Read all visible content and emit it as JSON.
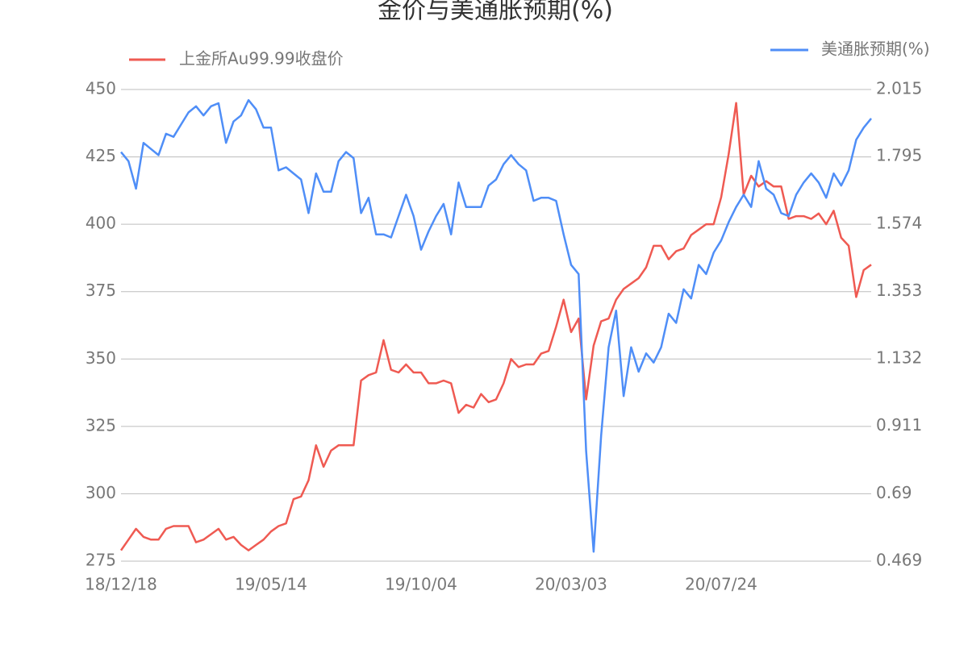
{
  "chart_data": {
    "type": "line",
    "title": "金价与美通胀预期(%)",
    "categories": [
      "18/12/18",
      null,
      null,
      null,
      null,
      null,
      null,
      null,
      null,
      null,
      null,
      null,
      null,
      null,
      null,
      null,
      null,
      null,
      null,
      null,
      "19/05/14",
      null,
      null,
      null,
      null,
      null,
      null,
      null,
      null,
      null,
      null,
      null,
      null,
      null,
      null,
      null,
      null,
      null,
      null,
      null,
      "19/10/04",
      null,
      null,
      null,
      null,
      null,
      null,
      null,
      null,
      null,
      null,
      null,
      null,
      null,
      null,
      null,
      null,
      null,
      null,
      null,
      "20/03/03",
      null,
      null,
      null,
      null,
      null,
      null,
      null,
      null,
      null,
      null,
      null,
      null,
      null,
      null,
      null,
      null,
      null,
      null,
      null,
      "20/07/24",
      null,
      null,
      null,
      null,
      null,
      null,
      null,
      null,
      null,
      null,
      null,
      null,
      null,
      null,
      null,
      null,
      null,
      null,
      null,
      null
    ],
    "series": [
      {
        "name": "上金所Au99.99收盘价",
        "color": "#ef5a52",
        "axis": "y",
        "values": [
          279,
          283,
          287,
          284,
          283,
          283,
          287,
          288,
          288,
          288,
          282,
          283,
          285,
          287,
          283,
          284,
          281,
          279,
          281,
          283,
          286,
          288,
          289,
          298,
          299,
          305,
          318,
          310,
          316,
          318,
          318,
          318,
          342,
          344,
          345,
          357,
          346,
          345,
          348,
          345,
          345,
          341,
          341,
          342,
          341,
          330,
          333,
          332,
          337,
          334,
          335,
          341,
          350,
          347,
          348,
          348,
          352,
          353,
          362,
          372,
          360,
          365,
          335,
          355,
          364,
          365,
          372,
          376,
          378,
          380,
          384,
          392,
          392,
          387,
          390,
          391,
          396,
          398,
          400,
          400,
          410,
          426,
          445,
          411,
          418,
          414,
          416,
          414,
          414,
          402,
          403,
          403,
          402,
          404,
          400,
          405,
          395,
          392,
          373,
          383,
          385
        ]
      },
      {
        "name": "美通胀预期(%)",
        "color": "#4f8ef7",
        "axis": "y2",
        "values": [
          1.81,
          1.78,
          1.69,
          1.84,
          1.82,
          1.8,
          1.87,
          1.86,
          1.9,
          1.94,
          1.96,
          1.93,
          1.96,
          1.97,
          1.84,
          1.91,
          1.93,
          1.98,
          1.95,
          1.89,
          1.89,
          1.75,
          1.76,
          1.74,
          1.72,
          1.61,
          1.74,
          1.68,
          1.68,
          1.78,
          1.81,
          1.79,
          1.61,
          1.66,
          1.54,
          1.54,
          1.53,
          1.6,
          1.67,
          1.6,
          1.49,
          1.55,
          1.6,
          1.64,
          1.54,
          1.71,
          1.63,
          1.63,
          1.63,
          1.7,
          1.72,
          1.77,
          1.8,
          1.77,
          1.75,
          1.65,
          1.66,
          1.66,
          1.65,
          1.54,
          1.44,
          1.41,
          0.83,
          0.5,
          0.88,
          1.17,
          1.29,
          1.01,
          1.17,
          1.09,
          1.15,
          1.12,
          1.17,
          1.28,
          1.25,
          1.36,
          1.33,
          1.44,
          1.41,
          1.48,
          1.52,
          1.58,
          1.63,
          1.67,
          1.63,
          1.78,
          1.69,
          1.67,
          1.61,
          1.6,
          1.67,
          1.71,
          1.74,
          1.71,
          1.66,
          1.74,
          1.7,
          1.75,
          1.85,
          1.89,
          1.92
        ]
      }
    ],
    "ylim": [
      275,
      450
    ],
    "yticks": [
      275,
      300,
      325,
      350,
      375,
      400,
      425,
      450
    ],
    "y2lim": [
      0.469,
      2.015
    ],
    "y2ticks": [
      0.469,
      0.69,
      {
        "value": 0.911,
        "label": "0.911"
      },
      1.132,
      1.353,
      1.574,
      1.795,
      2.015
    ],
    "grid": true
  }
}
